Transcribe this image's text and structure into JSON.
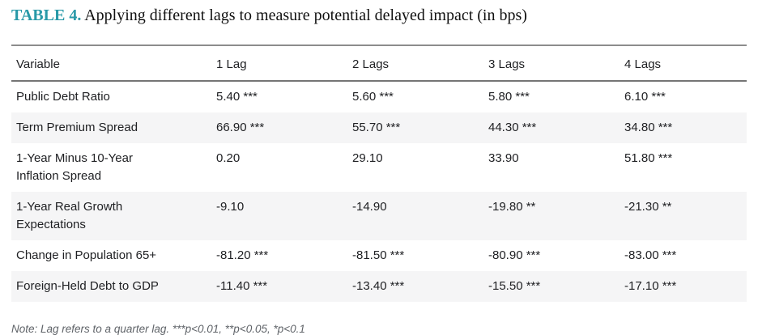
{
  "title": {
    "label": "TABLE 4.",
    "text": "Applying different lags to measure potential delayed impact (in bps)"
  },
  "colors": {
    "accent": "#2899A8",
    "stripe": "#F5F5F6",
    "rule": "#8C8C8C",
    "header_rule": "#757575",
    "text": "#202124",
    "note_text": "#5F6368"
  },
  "table": {
    "columns": [
      "Variable",
      "1 Lag",
      "2 Lags",
      "3 Lags",
      "4 Lags"
    ],
    "rows": [
      {
        "variable": "Public Debt Ratio",
        "values": [
          "5.40 ***",
          "5.60 ***",
          "5.80 ***",
          "6.10 ***"
        ]
      },
      {
        "variable": "Term Premium Spread",
        "values": [
          "66.90 ***",
          "55.70 ***",
          "44.30 ***",
          "34.80 ***"
        ]
      },
      {
        "variable": "1-Year Minus 10-Year\nInflation Spread",
        "values": [
          "0.20",
          "29.10",
          "33.90",
          "51.80 ***"
        ]
      },
      {
        "variable": "1-Year Real Growth\nExpectations",
        "values": [
          "-9.10",
          "-14.90",
          "-19.80 **",
          "-21.30 **"
        ]
      },
      {
        "variable": "Change in Population 65+",
        "values": [
          "-81.20 ***",
          "-81.50 ***",
          "-80.90 ***",
          "-83.00 ***"
        ]
      },
      {
        "variable": "Foreign-Held Debt to GDP",
        "values": [
          "-11.40 ***",
          "-13.40 ***",
          "-15.50 ***",
          "-17.10 ***"
        ]
      }
    ]
  },
  "note": "Note: Lag refers to a quarter lag. ***p<0.01, **p<0.05, *p<0.1"
}
